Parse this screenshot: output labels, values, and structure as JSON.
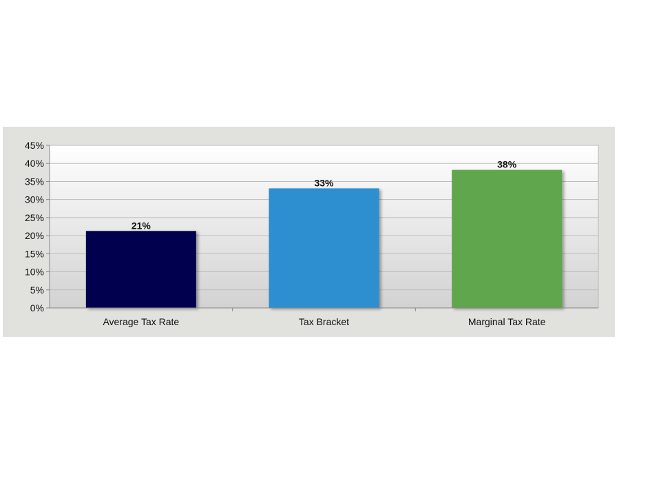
{
  "chart_data": {
    "type": "bar",
    "title": "",
    "xlabel": "",
    "ylabel": "",
    "categories": [
      "Average Tax Rate",
      "Tax Bracket",
      "Marginal Tax Rate"
    ],
    "values": [
      21.3,
      33.1,
      38.2
    ],
    "data_labels": [
      "21%",
      "33%",
      "38%"
    ],
    "ylim": [
      0,
      45
    ],
    "yticks": [
      0,
      5,
      10,
      15,
      20,
      25,
      30,
      35,
      40,
      45
    ],
    "ytick_labels": [
      "0%",
      "5%",
      "10%",
      "15%",
      "20%",
      "25%",
      "30%",
      "35%",
      "40%",
      "45%"
    ],
    "colors": [
      "#00004f",
      "#2f8fd0",
      "#61a64e"
    ],
    "grid": true,
    "legend": "none"
  }
}
